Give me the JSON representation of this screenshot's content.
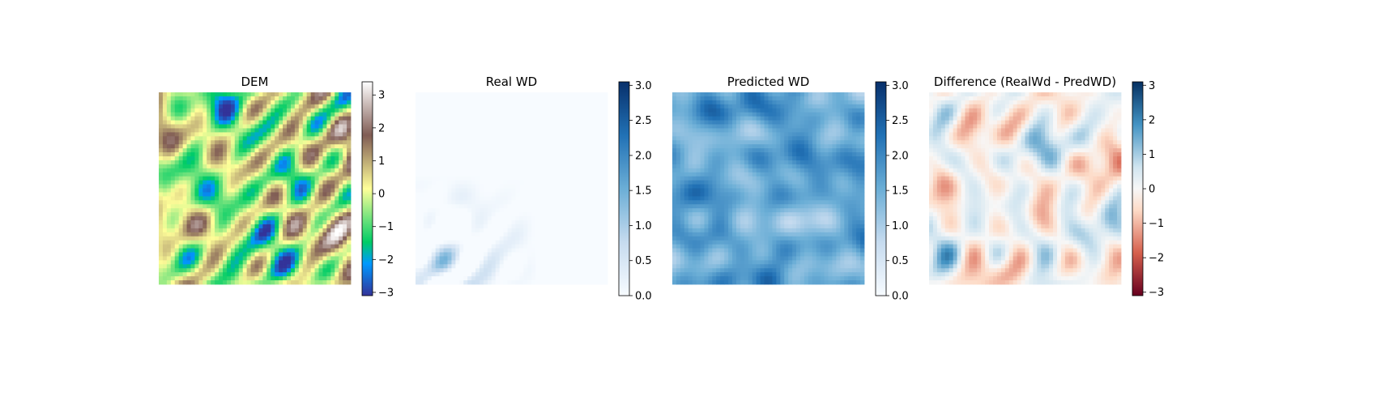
{
  "chart_data": [
    {
      "type": "heatmap",
      "title": "DEM",
      "colormap": "terrain",
      "colorbar": {
        "ticks": [
          3,
          2,
          1,
          0,
          -1,
          -2,
          -3
        ],
        "tick_labels": [
          "3",
          "2",
          "1",
          "0",
          "−1",
          "−2",
          "−3"
        ],
        "vmin": -3.1,
        "vmax": 3.4
      },
      "grid": false,
      "axes_visible": false
    },
    {
      "type": "heatmap",
      "title": "Real WD",
      "colormap": "Blues",
      "colorbar": {
        "ticks": [
          3.0,
          2.5,
          2.0,
          1.5,
          1.0,
          0.5,
          0.0
        ],
        "tick_labels": [
          "3.0",
          "2.5",
          "2.0",
          "1.5",
          "1.0",
          "0.5",
          "0.0"
        ],
        "vmin": 0,
        "vmax": 3.05
      },
      "grid": false,
      "axes_visible": false
    },
    {
      "type": "heatmap",
      "title": "Predicted WD",
      "colormap": "Blues",
      "colorbar": {
        "ticks": [
          3.0,
          2.5,
          2.0,
          1.5,
          1.0,
          0.5,
          0.0
        ],
        "tick_labels": [
          "3.0",
          "2.5",
          "2.0",
          "1.5",
          "1.0",
          "0.5",
          "0.0"
        ],
        "vmin": 0,
        "vmax": 3.05
      },
      "grid": false,
      "axes_visible": false
    },
    {
      "type": "heatmap",
      "title": "Difference (RealWd - PredWD)",
      "colormap": "RdBu",
      "colorbar": {
        "ticks": [
          3,
          2,
          1,
          0,
          -1,
          -2,
          -3
        ],
        "tick_labels": [
          "3",
          "2",
          "1",
          "0",
          "−1",
          "−2",
          "−3"
        ],
        "vmin": -3.1,
        "vmax": 3.1
      },
      "grid": false,
      "axes_visible": false
    }
  ]
}
